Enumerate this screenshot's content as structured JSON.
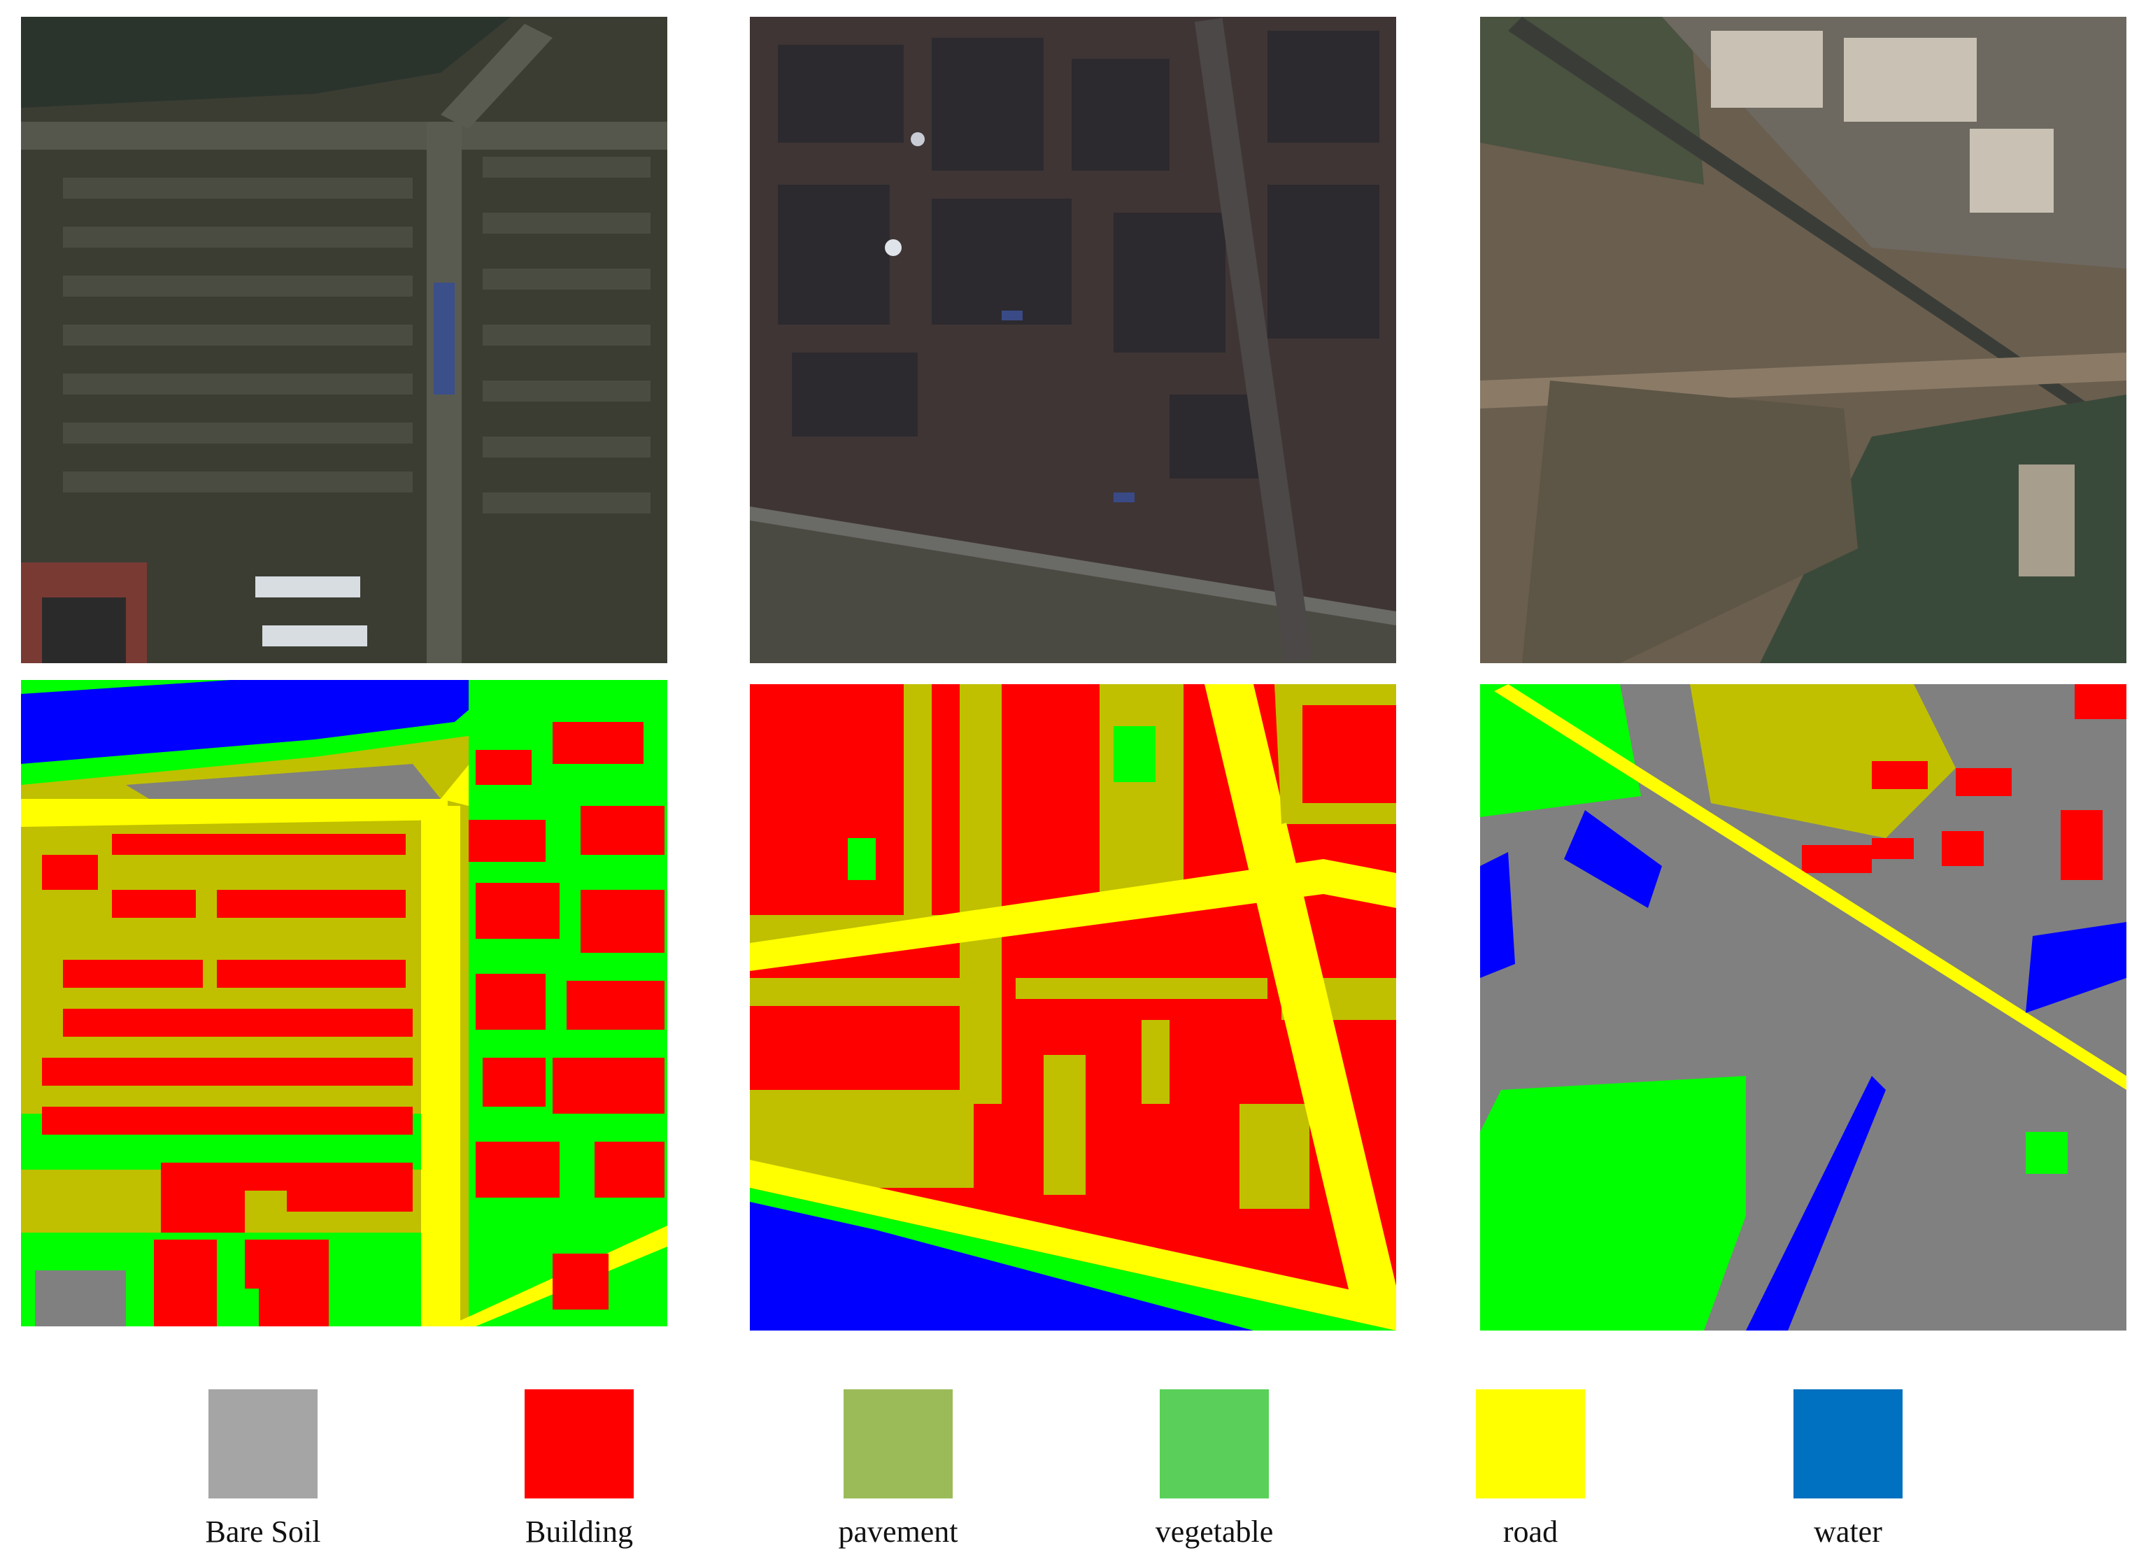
{
  "colors": {
    "bare_soil": "#a5a5a5",
    "building": "#ff0000",
    "pavement": "#9bbb59",
    "vegetable": "#5ad05a",
    "road": "#ffff00",
    "water": "#0070c0",
    "mask_gray": "#808080",
    "mask_olive": "#c0c000",
    "mask_green": "#00ff00",
    "mask_blue": "#0000ff"
  },
  "legend": [
    {
      "label": "Bare Soil",
      "color": "#a5a5a5"
    },
    {
      "label": "Building",
      "color": "#ff0000"
    },
    {
      "label": "pavement",
      "color": "#9bbb59"
    },
    {
      "label": "vegetable",
      "color": "#5ad05a"
    },
    {
      "label": "road",
      "color": "#ffff00"
    },
    {
      "label": "water",
      "color": "#0070c0"
    }
  ]
}
